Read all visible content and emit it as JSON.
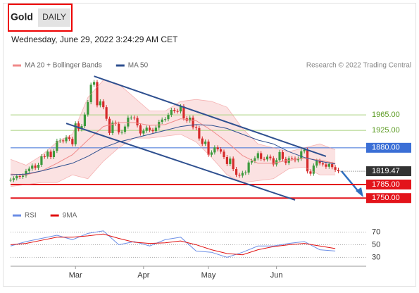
{
  "header": {
    "symbol": "Gold",
    "period": "DAILY",
    "timestamp": "Wednesday, June 29, 2022 3:24:29 AM CET",
    "credit": "Research © 2022 Trading Central"
  },
  "chart_data": [
    {
      "type": "candlestick",
      "xlim": [
        0,
        115
      ],
      "ylim": [
        1734,
        2080
      ],
      "xticks": [
        {
          "value": 21,
          "label": "Mar"
        },
        {
          "value": 43,
          "label": "Apr"
        },
        {
          "value": 64,
          "label": "May"
        },
        {
          "value": 86,
          "label": "Jun"
        }
      ],
      "x": [
        0,
        1,
        2,
        3,
        4,
        5,
        6,
        7,
        8,
        9,
        10,
        11,
        12,
        13,
        14,
        15,
        16,
        17,
        18,
        19,
        20,
        21,
        22,
        23,
        24,
        25,
        26,
        27,
        28,
        29,
        30,
        31,
        32,
        33,
        34,
        35,
        36,
        37,
        38,
        39,
        40,
        41,
        42,
        43,
        44,
        45,
        46,
        47,
        48,
        49,
        50,
        51,
        52,
        53,
        54,
        55,
        56,
        57,
        58,
        59,
        60,
        61,
        62,
        63,
        64,
        65,
        66,
        67,
        68,
        69,
        70,
        71,
        72,
        73,
        74,
        75,
        76,
        77,
        78,
        79,
        80,
        81,
        82,
        83,
        84,
        85,
        86,
        87,
        88,
        89,
        90,
        91,
        92,
        93,
        94,
        95,
        96,
        97,
        98,
        99,
        100,
        101,
        102,
        103,
        104,
        105,
        106
      ],
      "close": [
        1797,
        1801,
        1807,
        1805,
        1808,
        1820,
        1826,
        1834,
        1828,
        1836,
        1858,
        1857,
        1870,
        1856,
        1872,
        1898,
        1899,
        1897,
        1907,
        1903,
        1889,
        1943,
        1928,
        1936,
        1966,
        1998,
        2043,
        2050,
        1990,
        2000,
        1985,
        1955,
        1918,
        1945,
        1942,
        1920,
        1921,
        1935,
        1958,
        1958,
        1957,
        1938,
        1917,
        1924,
        1932,
        1926,
        1923,
        1932,
        1947,
        1953,
        1954,
        1965,
        1978,
        1975,
        1974,
        1987,
        1956,
        1950,
        1958,
        1933,
        1931,
        1904,
        1890,
        1896,
        1862,
        1868,
        1881,
        1876,
        1870,
        1856,
        1838,
        1852,
        1825,
        1810,
        1808,
        1815,
        1816,
        1842,
        1846,
        1853,
        1866,
        1851,
        1850,
        1857,
        1853,
        1837,
        1848,
        1869,
        1851,
        1841,
        1853,
        1852,
        1848,
        1852,
        1871,
        1875,
        1819,
        1813,
        1834,
        1846,
        1840,
        1837,
        1831,
        1838,
        1830,
        1823,
        1819.47
      ],
      "up_color": "#3c9a3c",
      "down_color": "#d62b2b",
      "series": [
        {
          "name": "MA 20 + Bollinger Bands",
          "color": "#f08a8a",
          "x": [
            0,
            5,
            10,
            15,
            20,
            25,
            30,
            35,
            40,
            45,
            50,
            55,
            60,
            65,
            70,
            75,
            80,
            85,
            90,
            95,
            100,
            105
          ],
          "values": [
            1812,
            1810,
            1820,
            1840,
            1862,
            1900,
            1935,
            1945,
            1945,
            1938,
            1940,
            1955,
            1950,
            1925,
            1895,
            1860,
            1840,
            1840,
            1848,
            1853,
            1848,
            1840
          ],
          "upper": [
            1850,
            1835,
            1860,
            1895,
            1915,
            2010,
            2055,
            2045,
            2010,
            1975,
            1975,
            2000,
            2005,
            2000,
            1985,
            1930,
            1890,
            1880,
            1870,
            1880,
            1890,
            1875
          ],
          "lower": [
            1780,
            1785,
            1790,
            1790,
            1810,
            1800,
            1845,
            1880,
            1905,
            1905,
            1910,
            1915,
            1895,
            1855,
            1810,
            1790,
            1795,
            1800,
            1826,
            1830,
            1810,
            1810
          ]
        },
        {
          "name": "MA 50",
          "color": "#2e4f8f",
          "x": [
            0,
            5,
            10,
            15,
            20,
            25,
            30,
            35,
            40,
            45,
            50,
            55,
            60,
            65,
            70,
            75,
            80,
            85,
            90,
            95,
            100,
            105
          ],
          "values": [
            1810,
            1812,
            1820,
            1830,
            1840,
            1858,
            1880,
            1895,
            1905,
            1915,
            1925,
            1935,
            1940,
            1938,
            1930,
            1915,
            1900,
            1890,
            1870,
            1855,
            1845,
            1838
          ]
        }
      ],
      "trendlines": [
        {
          "x": [
            27,
            102
          ],
          "values": [
            2065,
            1858
          ]
        },
        {
          "x": [
            18,
            92
          ],
          "values": [
            1943,
            1745
          ]
        }
      ],
      "trendline_color": "#2e4f8f",
      "levels": [
        {
          "value": 1965,
          "label": "1965.00",
          "color": "#a9d17e",
          "label_style": "text"
        },
        {
          "value": 1925,
          "label": "1925.00",
          "color": "#a9d17e",
          "label_style": "text"
        },
        {
          "value": 1880,
          "label": "1880.00",
          "color": "#3b6fd6",
          "label_style": "box"
        },
        {
          "value": 1785,
          "label": "1785.00",
          "color": "#e3141b",
          "label_style": "box"
        },
        {
          "value": 1750,
          "label": "1750.00",
          "color": "#e3141b",
          "label_style": "box"
        }
      ],
      "last": {
        "value": 1819.47,
        "color": "#333333"
      }
    },
    {
      "type": "line",
      "xlim": [
        0,
        115
      ],
      "ylim": [
        17,
        103
      ],
      "yticks": [
        70,
        50,
        30
      ],
      "series": [
        {
          "name": "RSI",
          "color": "#6b8ee6",
          "x": [
            0,
            5,
            10,
            15,
            20,
            25,
            30,
            35,
            40,
            45,
            50,
            55,
            60,
            65,
            70,
            75,
            80,
            85,
            90,
            95,
            100,
            105
          ],
          "values": [
            48,
            55,
            60,
            65,
            58,
            68,
            72,
            50,
            55,
            48,
            58,
            62,
            40,
            38,
            30,
            38,
            48,
            48,
            52,
            55,
            42,
            40
          ]
        },
        {
          "name": "9MA",
          "color": "#e01010",
          "x": [
            0,
            5,
            10,
            15,
            20,
            25,
            30,
            35,
            40,
            45,
            50,
            55,
            60,
            65,
            70,
            75,
            80,
            85,
            90,
            95,
            100,
            105
          ],
          "values": [
            50,
            52,
            57,
            62,
            62,
            64,
            67,
            60,
            54,
            52,
            53,
            56,
            50,
            42,
            36,
            34,
            42,
            47,
            50,
            52,
            48,
            44
          ]
        }
      ]
    }
  ]
}
